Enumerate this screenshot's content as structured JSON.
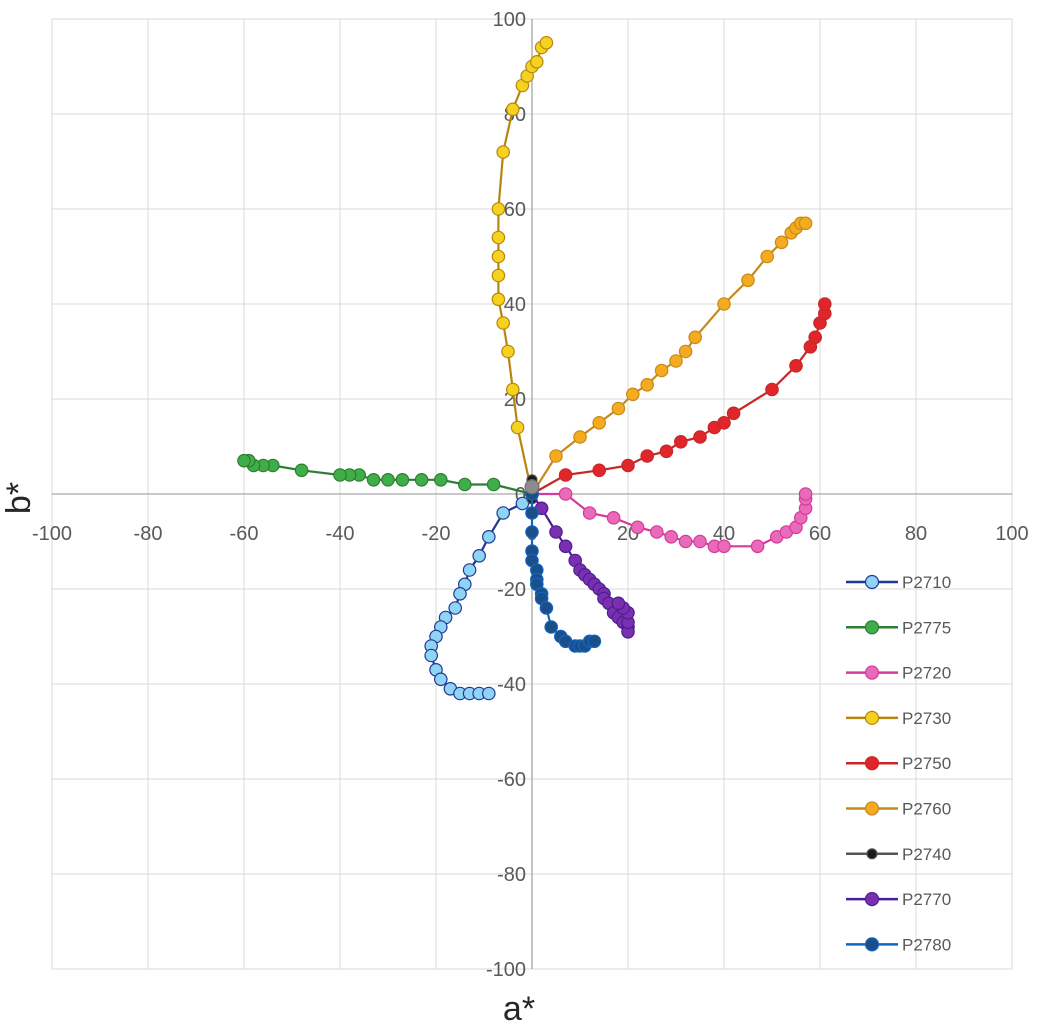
{
  "chart_data": {
    "type": "scatter",
    "title": "",
    "xlabel": "a*",
    "ylabel": "b*",
    "xlim": [
      -100,
      100
    ],
    "ylim": [
      -100,
      100
    ],
    "xticks": [
      -100,
      -80,
      -60,
      -40,
      -20,
      0,
      20,
      40,
      60,
      80,
      100
    ],
    "yticks": [
      -100,
      -80,
      -60,
      -40,
      -20,
      0,
      20,
      40,
      60,
      80,
      100
    ],
    "grid": true,
    "legend_position": "bottom-right",
    "series": [
      {
        "name": "P2710",
        "line_color": "#1f3a93",
        "marker_color": "#8fd3f5",
        "points": [
          [
            0,
            0
          ],
          [
            -2,
            -2
          ],
          [
            -6,
            -4
          ],
          [
            -9,
            -9
          ],
          [
            -11,
            -13
          ],
          [
            -13,
            -16
          ],
          [
            -14,
            -19
          ],
          [
            -15,
            -21
          ],
          [
            -16,
            -24
          ],
          [
            -18,
            -26
          ],
          [
            -19,
            -28
          ],
          [
            -20,
            -30
          ],
          [
            -21,
            -32
          ],
          [
            -21,
            -34
          ],
          [
            -20,
            -37
          ],
          [
            -19,
            -39
          ],
          [
            -17,
            -41
          ],
          [
            -15,
            -42
          ],
          [
            -13,
            -42
          ],
          [
            -11,
            -42
          ],
          [
            -9,
            -42
          ]
        ]
      },
      {
        "name": "P2775",
        "line_color": "#2e7d32",
        "marker_color": "#3fae49",
        "points": [
          [
            0,
            0
          ],
          [
            -8,
            2
          ],
          [
            -14,
            2
          ],
          [
            -19,
            3
          ],
          [
            -23,
            3
          ],
          [
            -27,
            3
          ],
          [
            -30,
            3
          ],
          [
            -33,
            3
          ],
          [
            -36,
            4
          ],
          [
            -38,
            4
          ],
          [
            -40,
            4
          ],
          [
            -48,
            5
          ],
          [
            -54,
            6
          ],
          [
            -56,
            6
          ],
          [
            -58,
            6
          ],
          [
            -59,
            7
          ],
          [
            -60,
            7
          ]
        ]
      },
      {
        "name": "P2720",
        "line_color": "#d63a9a",
        "marker_color": "#e86ab8",
        "points": [
          [
            0,
            0
          ],
          [
            7,
            0
          ],
          [
            12,
            -4
          ],
          [
            17,
            -5
          ],
          [
            22,
            -7
          ],
          [
            26,
            -8
          ],
          [
            29,
            -9
          ],
          [
            32,
            -10
          ],
          [
            35,
            -10
          ],
          [
            38,
            -11
          ],
          [
            40,
            -11
          ],
          [
            47,
            -11
          ],
          [
            51,
            -9
          ],
          [
            53,
            -8
          ],
          [
            55,
            -7
          ],
          [
            56,
            -5
          ],
          [
            57,
            -3
          ],
          [
            57,
            -1
          ],
          [
            57,
            0
          ]
        ]
      },
      {
        "name": "P2730",
        "line_color": "#b8860b",
        "marker_color": "#f4d21f",
        "points": [
          [
            0,
            0
          ],
          [
            -3,
            14
          ],
          [
            -4,
            22
          ],
          [
            -5,
            30
          ],
          [
            -6,
            36
          ],
          [
            -7,
            41
          ],
          [
            -7,
            46
          ],
          [
            -7,
            50
          ],
          [
            -7,
            54
          ],
          [
            -7,
            60
          ],
          [
            -6,
            72
          ],
          [
            -4,
            81
          ],
          [
            -2,
            86
          ],
          [
            -1,
            88
          ],
          [
            0,
            90
          ],
          [
            1,
            91
          ],
          [
            2,
            94
          ],
          [
            3,
            95
          ]
        ]
      },
      {
        "name": "P2750",
        "line_color": "#c62828",
        "marker_color": "#e0262a",
        "points": [
          [
            0,
            0
          ],
          [
            7,
            4
          ],
          [
            14,
            5
          ],
          [
            20,
            6
          ],
          [
            24,
            8
          ],
          [
            28,
            9
          ],
          [
            31,
            11
          ],
          [
            35,
            12
          ],
          [
            38,
            14
          ],
          [
            40,
            15
          ],
          [
            42,
            17
          ],
          [
            50,
            22
          ],
          [
            55,
            27
          ],
          [
            58,
            31
          ],
          [
            59,
            33
          ],
          [
            60,
            36
          ],
          [
            61,
            38
          ],
          [
            61,
            40
          ]
        ]
      },
      {
        "name": "P2760",
        "line_color": "#c8891a",
        "marker_color": "#f5ab1f",
        "points": [
          [
            0,
            0
          ],
          [
            5,
            8
          ],
          [
            10,
            12
          ],
          [
            14,
            15
          ],
          [
            18,
            18
          ],
          [
            21,
            21
          ],
          [
            24,
            23
          ],
          [
            27,
            26
          ],
          [
            30,
            28
          ],
          [
            32,
            30
          ],
          [
            34,
            33
          ],
          [
            40,
            40
          ],
          [
            45,
            45
          ],
          [
            49,
            50
          ],
          [
            52,
            53
          ],
          [
            54,
            55
          ],
          [
            55,
            56
          ],
          [
            56,
            57
          ],
          [
            57,
            57
          ]
        ]
      },
      {
        "name": "P2740",
        "line_color": "#555555",
        "marker_color": "#1a1a1a",
        "points": [
          [
            0,
            3
          ],
          [
            0,
            2
          ],
          [
            0,
            1
          ],
          [
            0,
            0
          ],
          [
            0,
            -1
          ]
        ]
      },
      {
        "name": "P2770",
        "line_color": "#4b1f8f",
        "marker_color": "#7a2fb0",
        "points": [
          [
            0,
            0
          ],
          [
            2,
            -3
          ],
          [
            5,
            -8
          ],
          [
            7,
            -11
          ],
          [
            9,
            -14
          ],
          [
            10,
            -16
          ],
          [
            11,
            -17
          ],
          [
            12,
            -18
          ],
          [
            13,
            -19
          ],
          [
            14,
            -20
          ],
          [
            15,
            -21
          ],
          [
            15,
            -22
          ],
          [
            16,
            -23
          ],
          [
            17,
            -25
          ],
          [
            18,
            -26
          ],
          [
            19,
            -27
          ],
          [
            20,
            -28
          ],
          [
            20,
            -29
          ],
          [
            20,
            -27
          ],
          [
            20,
            -25
          ],
          [
            19,
            -24
          ],
          [
            18,
            -23
          ]
        ]
      },
      {
        "name": "P2780",
        "line_color": "#1565c0",
        "marker_color": "#1a4f8a",
        "points": [
          [
            0,
            0
          ],
          [
            0,
            -4
          ],
          [
            0,
            -8
          ],
          [
            0,
            -12
          ],
          [
            0,
            -14
          ],
          [
            1,
            -16
          ],
          [
            1,
            -18
          ],
          [
            1,
            -19
          ],
          [
            2,
            -21
          ],
          [
            2,
            -22
          ],
          [
            3,
            -24
          ],
          [
            4,
            -28
          ],
          [
            6,
            -30
          ],
          [
            7,
            -31
          ],
          [
            9,
            -32
          ],
          [
            10,
            -32
          ],
          [
            11,
            -32
          ],
          [
            12,
            -31
          ],
          [
            13,
            -31
          ]
        ]
      }
    ]
  }
}
